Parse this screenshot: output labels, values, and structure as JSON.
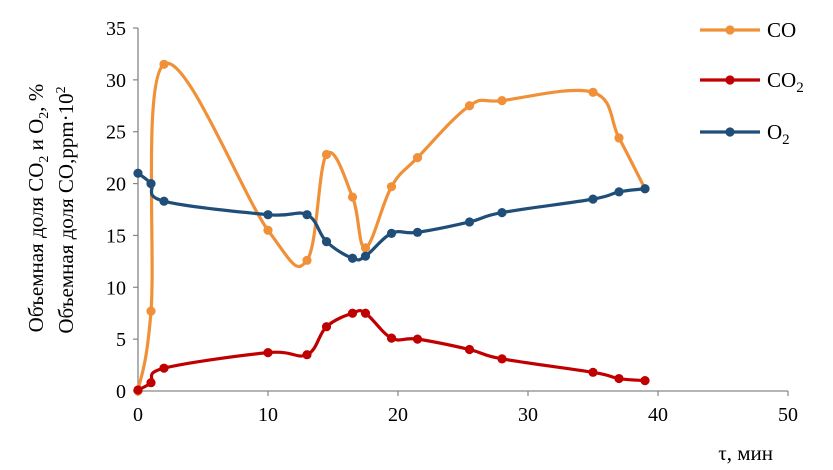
{
  "chart_data": {
    "type": "line",
    "xlabel": "τ, мин",
    "ylabel_line1": "Объемная доля CO",
    "ylabel_line1_sub": "2",
    "ylabel_line1_b": " и O",
    "ylabel_line1_sub2": "2",
    "ylabel_line1_c": ", %",
    "ylabel_line2": "Объемная доля CO,ppm·10",
    "ylabel_line2_sup": "2",
    "xlim": [
      0,
      50
    ],
    "ylim": [
      0,
      35
    ],
    "xticks": [
      0,
      10,
      20,
      30,
      40,
      50
    ],
    "yticks": [
      0,
      5,
      10,
      15,
      20,
      25,
      30,
      35
    ],
    "grid": false,
    "legend_position": "right",
    "series": [
      {
        "name": "CO",
        "color": "#F0913A",
        "x": [
          0,
          1,
          2,
          10,
          13,
          14.5,
          16.5,
          17.5,
          19.5,
          21.5,
          25.5,
          28,
          35,
          37,
          39
        ],
        "y": [
          0,
          7.7,
          31.5,
          15.5,
          12.6,
          22.8,
          18.7,
          13.8,
          19.7,
          22.5,
          27.5,
          28,
          28.8,
          24.4,
          19.5
        ]
      },
      {
        "name": "CO",
        "name_sub": "2",
        "color": "#C00000",
        "x": [
          0,
          1,
          2,
          10,
          13,
          14.5,
          16.5,
          17.5,
          19.5,
          21.5,
          25.5,
          28,
          35,
          37,
          39
        ],
        "y": [
          0.1,
          0.8,
          2.2,
          3.7,
          3.5,
          6.2,
          7.5,
          7.5,
          5.1,
          5.0,
          4.0,
          3.1,
          1.8,
          1.2,
          1.0
        ]
      },
      {
        "name": "O",
        "name_sub": "2",
        "color": "#1F4E79",
        "x": [
          0,
          1,
          2,
          10,
          13,
          14.5,
          16.5,
          17.5,
          19.5,
          21.5,
          25.5,
          28,
          35,
          37,
          39
        ],
        "y": [
          21.0,
          20.0,
          18.3,
          17.0,
          17.0,
          14.4,
          12.8,
          13.0,
          15.2,
          15.3,
          16.3,
          17.2,
          18.5,
          19.2,
          19.5
        ]
      }
    ]
  }
}
